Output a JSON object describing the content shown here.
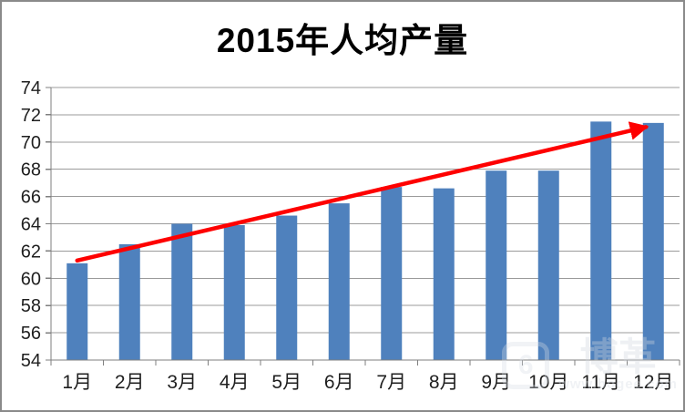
{
  "title": "2015年人均产量",
  "chart_data": {
    "type": "bar",
    "title": "2015年人均产量",
    "categories": [
      "1月",
      "2月",
      "3月",
      "4月",
      "5月",
      "6月",
      "7月",
      "8月",
      "9月",
      "10月",
      "11月",
      "12月"
    ],
    "values": [
      61.1,
      62.5,
      64.0,
      63.9,
      64.6,
      65.5,
      66.7,
      66.6,
      67.9,
      67.9,
      71.5,
      71.4
    ],
    "xlabel": "",
    "ylabel": "",
    "ylim": [
      54,
      74
    ],
    "ytick_step": 2,
    "grid": true,
    "legend": false,
    "bar_color": "#4f81bd",
    "gridline_color": "#9b9b9b",
    "axis_color": "#7f7f7f",
    "label_color": "#1f1f1f",
    "trend_arrow": {
      "color": "#fe0000",
      "from": {
        "category_index": 0,
        "value": 61.3
      },
      "to": {
        "category_index": 11,
        "value": 71.1
      }
    }
  },
  "watermark": {
    "logo_glyph": "6",
    "text": "博革",
    "url": "www.bogee.com"
  }
}
